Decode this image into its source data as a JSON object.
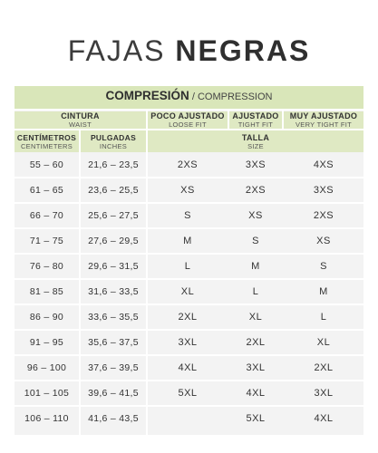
{
  "title": {
    "light": "FAJAS",
    "bold": "NEGRAS"
  },
  "header": {
    "compression_es": "COMPRESIÓN",
    "compression_sep": " / ",
    "compression_en": "COMPRESSION",
    "waist_es": "CINTURA",
    "waist_en": "WAIST",
    "loose_es": "POCO AJUSTADO",
    "loose_en": "LOOSE FIT",
    "tight_es": "AJUSTADO",
    "tight_en": "TIGHT FIT",
    "very_es": "MUY AJUSTADO",
    "very_en": "VERY TIGHT FIT",
    "cm_es": "CENTÍMETROS",
    "cm_en": "CENTIMETERS",
    "in_es": "PULGADAS",
    "in_en": "INCHES",
    "size_es": "TALLA",
    "size_en": "SIZE"
  },
  "rows": [
    {
      "cm": "55 – 60",
      "in": "21,6 – 23,5",
      "loose": "2XS",
      "tight": "3XS",
      "very": "4XS"
    },
    {
      "cm": "61 – 65",
      "in": "23,6 – 25,5",
      "loose": "XS",
      "tight": "2XS",
      "very": "3XS"
    },
    {
      "cm": "66 – 70",
      "in": "25,6 – 27,5",
      "loose": "S",
      "tight": "XS",
      "very": "2XS"
    },
    {
      "cm": "71 – 75",
      "in": "27,6 – 29,5",
      "loose": "M",
      "tight": "S",
      "very": "XS"
    },
    {
      "cm": "76 – 80",
      "in": "29,6 – 31,5",
      "loose": "L",
      "tight": "M",
      "very": "S"
    },
    {
      "cm": "81 – 85",
      "in": "31,6 – 33,5",
      "loose": "XL",
      "tight": "L",
      "very": "M"
    },
    {
      "cm": "86 – 90",
      "in": "33,6 – 35,5",
      "loose": "2XL",
      "tight": "XL",
      "very": "L"
    },
    {
      "cm": "91 – 95",
      "in": "35,6 – 37,5",
      "loose": "3XL",
      "tight": "2XL",
      "very": "XL"
    },
    {
      "cm": "96 – 100",
      "in": "37,6 – 39,5",
      "loose": "4XL",
      "tight": "3XL",
      "very": "2XL"
    },
    {
      "cm": "101 – 105",
      "in": "39,6 – 41,5",
      "loose": "5XL",
      "tight": "4XL",
      "very": "3XL"
    },
    {
      "cm": "106 – 110",
      "in": "41,6 – 43,5",
      "loose": "",
      "tight": "5XL",
      "very": "4XL"
    }
  ],
  "colors": {
    "band": "#d9e6b9",
    "panel": "#f3f3f3",
    "lines": "#ffffff"
  }
}
